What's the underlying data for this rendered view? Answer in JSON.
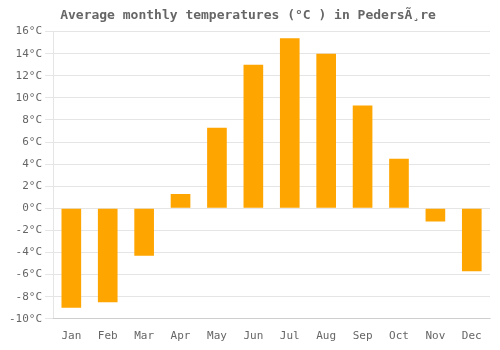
{
  "chart_data": {
    "type": "bar",
    "title": "Average monthly temperatures (°C ) in PedersÃ¸re",
    "categories": [
      "Jan",
      "Feb",
      "Mar",
      "Apr",
      "May",
      "Jun",
      "Jul",
      "Aug",
      "Sep",
      "Oct",
      "Nov",
      "Dec"
    ],
    "values": [
      -9.0,
      -8.5,
      -4.3,
      1.3,
      7.3,
      13.0,
      15.4,
      14.0,
      9.3,
      4.5,
      -1.2,
      -5.7
    ],
    "color": "#FFA500",
    "ylim": [
      -10,
      16
    ],
    "yticks": [
      {
        "value": -10,
        "label": "-10°C"
      },
      {
        "value": -8,
        "label": "-8°C"
      },
      {
        "value": -6,
        "label": "-6°C"
      },
      {
        "value": -4,
        "label": "-4°C"
      },
      {
        "value": -2,
        "label": "-2°C"
      },
      {
        "value": 0,
        "label": "0°C"
      },
      {
        "value": 2,
        "label": "2°C"
      },
      {
        "value": 4,
        "label": "4°C"
      },
      {
        "value": 6,
        "label": "6°C"
      },
      {
        "value": 8,
        "label": "8°C"
      },
      {
        "value": 10,
        "label": "10°C"
      },
      {
        "value": 12,
        "label": "12°C"
      },
      {
        "value": 14,
        "label": "14°C"
      },
      {
        "value": 16,
        "label": "16°C"
      }
    ],
    "grid": true
  }
}
